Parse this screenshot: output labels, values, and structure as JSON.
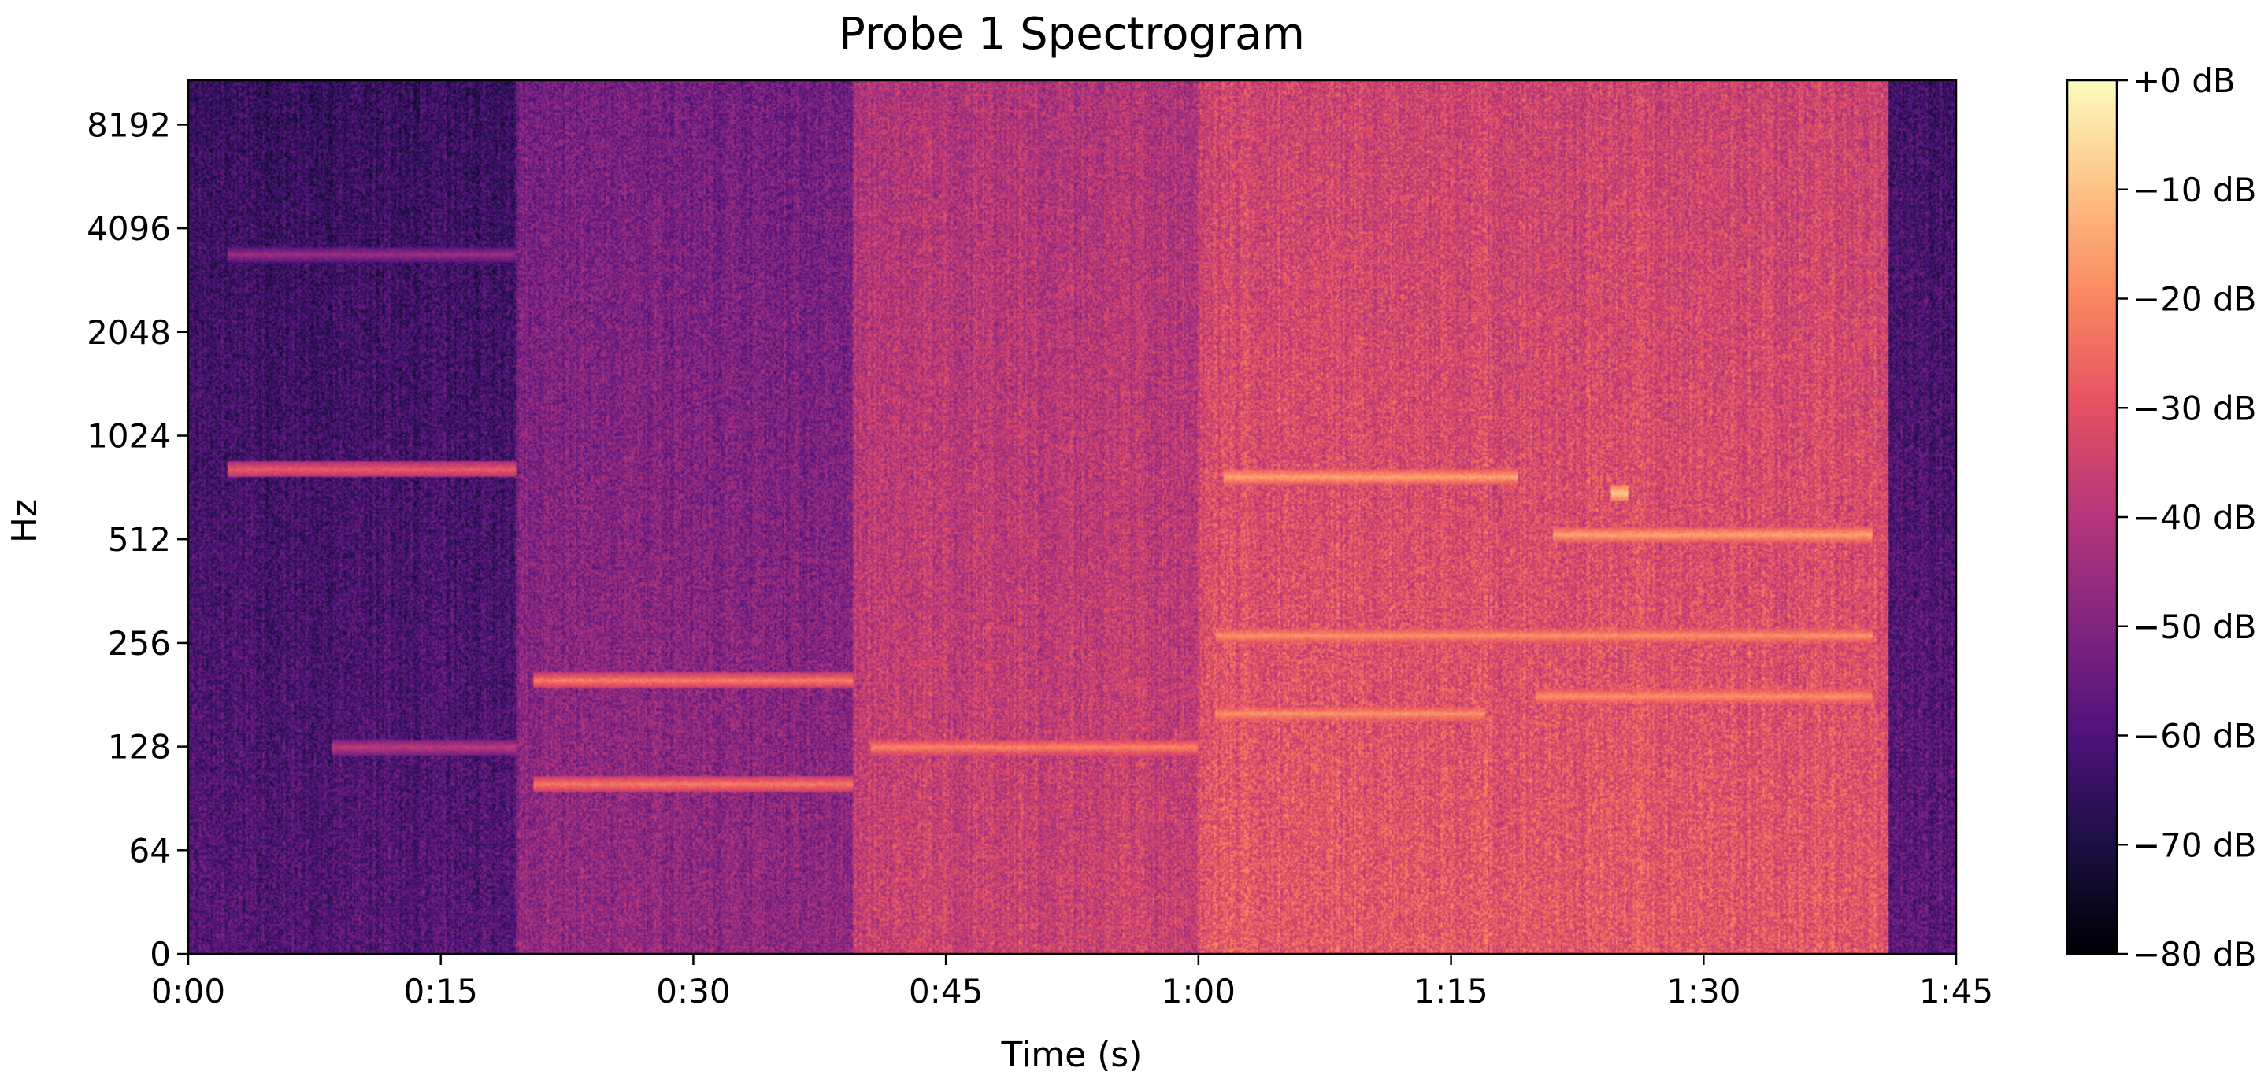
{
  "chart_data": {
    "type": "heatmap",
    "title": "Probe 1 Spectrogram",
    "xlabel": "Time (s)",
    "ylabel": "Hz",
    "x_ticks": [
      "0:00",
      "0:15",
      "0:30",
      "0:45",
      "1:00",
      "1:15",
      "1:30",
      "1:45"
    ],
    "x_tick_seconds": [
      0,
      15,
      30,
      45,
      60,
      75,
      90,
      105
    ],
    "y_ticks": [
      "0",
      "64",
      "128",
      "256",
      "512",
      "1024",
      "2048",
      "4096",
      "8192"
    ],
    "y_tick_hz": [
      0,
      64,
      128,
      256,
      512,
      1024,
      2048,
      4096,
      8192
    ],
    "y_scale": "symlog-base2",
    "xlim": [
      0,
      105
    ],
    "ylim_hz": [
      0,
      11025
    ],
    "colormap": "magma",
    "colorbar": {
      "ticks": [
        "+0 dB",
        "−10 dB",
        "−20 dB",
        "−30 dB",
        "−40 dB",
        "−50 dB",
        "−60 dB",
        "−70 dB",
        "−80 dB"
      ],
      "tick_db": [
        0,
        -10,
        -20,
        -30,
        -40,
        -50,
        -60,
        -70,
        -80
      ],
      "range_db": [
        -80,
        0
      ]
    },
    "segments": [
      {
        "start_s": 0,
        "end_s": 19.5,
        "noise_level_db": -62
      },
      {
        "start_s": 19.5,
        "end_s": 39.5,
        "noise_level_db": -50
      },
      {
        "start_s": 39.5,
        "end_s": 60,
        "noise_level_db": -38
      },
      {
        "start_s": 60,
        "end_s": 101,
        "noise_level_db": -32
      },
      {
        "start_s": 101,
        "end_s": 105,
        "noise_level_db": -60
      }
    ],
    "tonal_lines": [
      {
        "start_s": 2.3,
        "end_s": 19.5,
        "freq_hz": 820,
        "level_db": -28
      },
      {
        "start_s": 2.3,
        "end_s": 19.5,
        "freq_hz": 3450,
        "level_db": -45
      },
      {
        "start_s": 8.5,
        "end_s": 19.5,
        "freq_hz": 128,
        "level_db": -38
      },
      {
        "start_s": 20.5,
        "end_s": 39.5,
        "freq_hz": 200,
        "level_db": -22
      },
      {
        "start_s": 20.5,
        "end_s": 39.5,
        "freq_hz": 100,
        "level_db": -22
      },
      {
        "start_s": 40.5,
        "end_s": 60,
        "freq_hz": 128,
        "level_db": -20
      },
      {
        "start_s": 61,
        "end_s": 77,
        "freq_hz": 160,
        "level_db": -18
      },
      {
        "start_s": 80,
        "end_s": 100,
        "freq_hz": 180,
        "level_db": -18
      },
      {
        "start_s": 61,
        "end_s": 100,
        "freq_hz": 270,
        "level_db": -18
      },
      {
        "start_s": 81,
        "end_s": 100,
        "freq_hz": 530,
        "level_db": -15
      },
      {
        "start_s": 61.5,
        "end_s": 79,
        "freq_hz": 780,
        "level_db": -15
      },
      {
        "start_s": 84.5,
        "end_s": 85.5,
        "freq_hz": 700,
        "level_db": -8
      }
    ]
  }
}
